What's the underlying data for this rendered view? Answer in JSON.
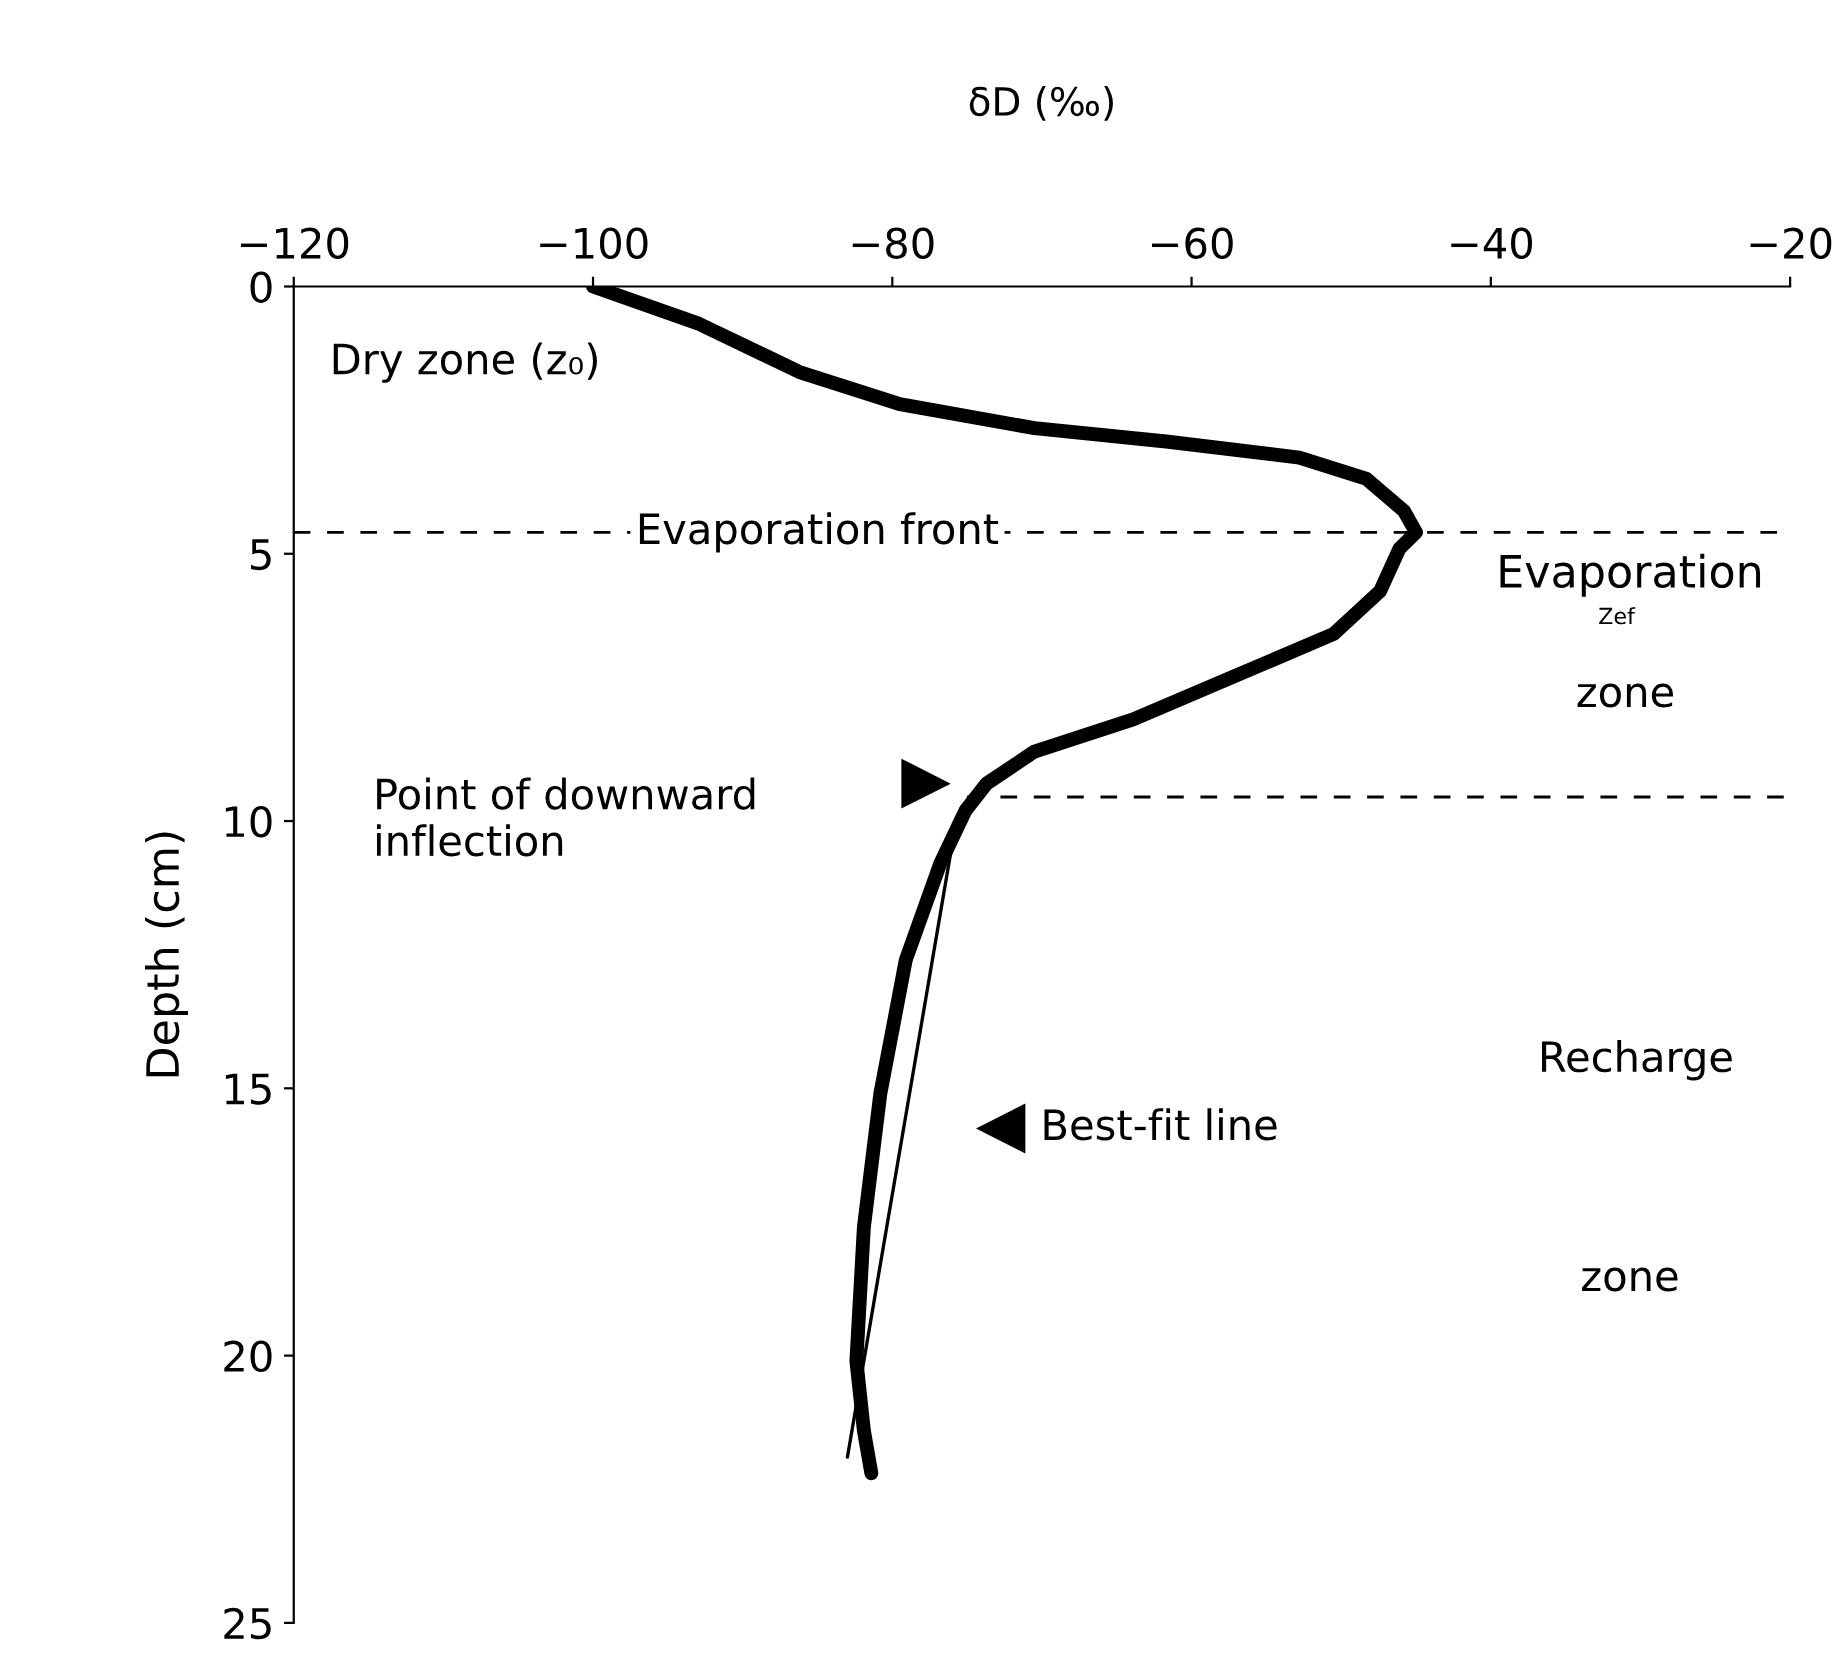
{
  "chart_data": {
    "type": "line",
    "xlabel": "δD (‰)",
    "ylabel": "Depth (cm)",
    "xlim": [
      -120,
      -20
    ],
    "xticks": [
      {
        "value": -120,
        "label": "−120"
      },
      {
        "value": -100,
        "label": "−100"
      },
      {
        "value": -80,
        "label": "−80"
      },
      {
        "value": -60,
        "label": "−60"
      },
      {
        "value": -40,
        "label": "−40"
      },
      {
        "value": -20,
        "label": "−20"
      }
    ],
    "ylim": [
      25,
      0
    ],
    "yticks": [
      0,
      5,
      10,
      15,
      20,
      25
    ],
    "grid": false,
    "legend": false,
    "marker": "none",
    "line_style": "solid",
    "series": [
      {
        "color": "#000000",
        "x": [
          -100,
          -92.9,
          -86.2,
          -79.5,
          -70.5,
          -61.7,
          -52.8,
          -48.3,
          -45.8,
          -45,
          -46.1,
          -47.4,
          -50.5,
          -57.2,
          -63.9,
          -70.5,
          -73.7,
          -75.1,
          -76.8,
          -79.1,
          -80.8,
          -81.9,
          -82.4,
          -81.9,
          -81.4
        ],
        "values": [
          0,
          0.7,
          1.6,
          2.2,
          2.65,
          2.9,
          3.2,
          3.6,
          4.2,
          4.6,
          4.9,
          5.7,
          6.5,
          7.3,
          8.1,
          8.7,
          9.3,
          9.8,
          10.8,
          12.6,
          15.1,
          17.6,
          20.1,
          21.4,
          22.2
        ]
      },
      {
        "color": "#000000",
        "x": [
          -76.1,
          -83.0
        ],
        "values": [
          10.6,
          21.9
        ]
      }
    ],
    "ref_lines": [
      {
        "axis": "y",
        "value": 4.6,
        "label": "Evaporation front",
        "line_style": "dashed",
        "color": "#000000"
      },
      {
        "axis": "y",
        "value": 9.55,
        "label": null,
        "line_style": "dashed",
        "color": "#000000"
      }
    ],
    "annotations": [
      "Dry zone (z₀)",
      "Point of downward\ninflection",
      "Best-fit line",
      "Evaporation",
      "Zef",
      "zone",
      "Recharge",
      "zone"
    ]
  }
}
